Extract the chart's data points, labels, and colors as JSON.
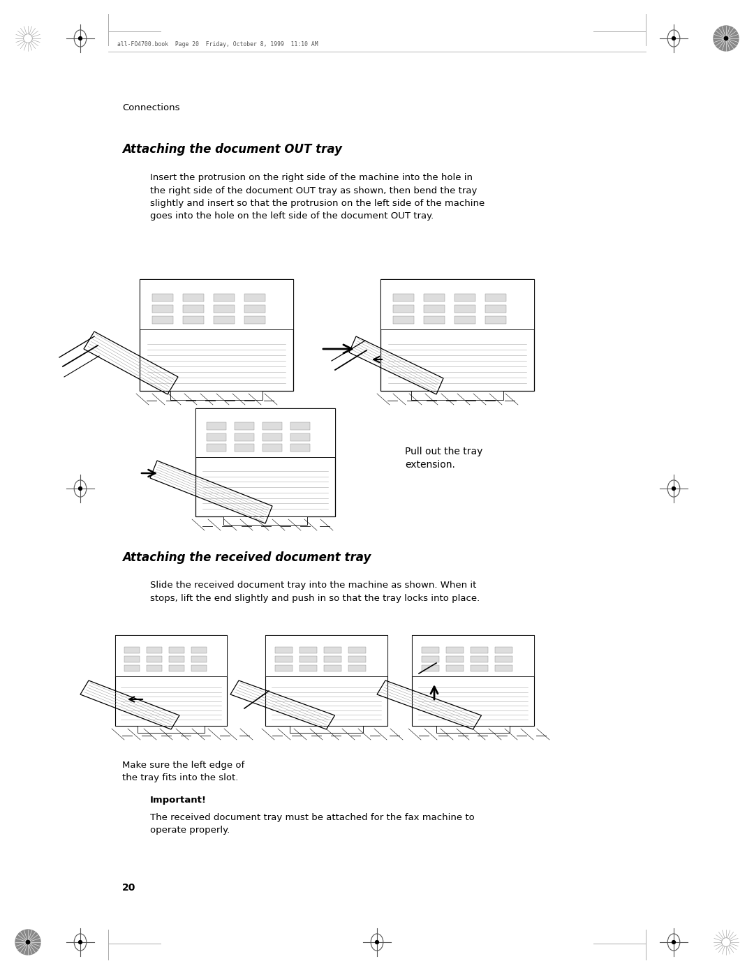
{
  "bg_color": "#ffffff",
  "page_width": 10.8,
  "page_height": 13.97,
  "header_text": "all-FO4700.book  Page 20  Friday, October 8, 1999  11:10 AM",
  "section_label": "Connections",
  "title1": "Attaching the document OUT tray",
  "body1": "Insert the protrusion on the right side of the machine into the hole in\nthe right side of the document OUT tray as shown, then bend the tray\nslightly and insert so that the protrusion on the left side of the machine\ngoes into the hole on the left side of the document OUT tray.",
  "caption1": "Pull out the tray\nextension.",
  "title2": "Attaching the received document tray",
  "body2": "Slide the received document tray into the machine as shown. When it\nstops, lift the end slightly and push in so that the tray locks into place.",
  "caption2": "Make sure the left edge of\nthe tray fits into the slot.",
  "important_label": "Important!",
  "important_text": "The received document tray must be attached for the fax machine to\noperate properly.",
  "page_number": "20"
}
